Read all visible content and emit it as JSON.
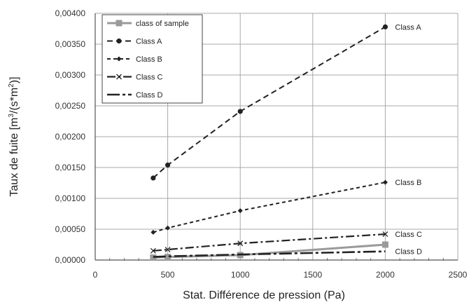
{
  "chart_data": {
    "type": "line",
    "xlabel": "Stat. Différence de pression (Pa)",
    "ylabel_main": "Taux de fuite [m",
    "ylabel_sup1": "3",
    "ylabel_mid": "/(s*m",
    "ylabel_sup2": "2",
    "ylabel_end": ")]",
    "xlim": [
      0,
      2500
    ],
    "ylim": [
      0,
      0.004
    ],
    "x_ticks": [
      0,
      500,
      1000,
      1500,
      2000,
      2500
    ],
    "x_tick_labels": [
      "0",
      "500",
      "1000",
      "1500",
      "2000",
      "2500"
    ],
    "y_ticks": [
      0,
      0.0005,
      0.001,
      0.0015,
      0.002,
      0.0025,
      0.003,
      0.0035,
      0.004
    ],
    "y_tick_labels": [
      "0,00000",
      "0,00050",
      "0,00100",
      "0,00150",
      "0,00200",
      "0,00250",
      "0,00300",
      "0,00350",
      "0,00400"
    ],
    "grid": "both",
    "legend_position": "top-left",
    "series": [
      {
        "name": "class of sample",
        "color": "#9a9a9a",
        "dash": "solid",
        "marker": "square",
        "x": [
          400,
          500,
          1000,
          2000
        ],
        "y": [
          4e-05,
          5e-05,
          8e-05,
          0.00025
        ]
      },
      {
        "name": "Class A",
        "color": "#222222",
        "dash": "dash",
        "marker": "circle",
        "end_label": "Class A",
        "x": [
          400,
          500,
          1000,
          2000
        ],
        "y": [
          0.00133,
          0.00154,
          0.00241,
          0.00378
        ]
      },
      {
        "name": "Class B",
        "color": "#222222",
        "dash": "shortdash",
        "marker": "diamond",
        "end_label": "Class B",
        "x": [
          400,
          500,
          1000,
          2000
        ],
        "y": [
          0.00045,
          0.00052,
          0.0008,
          0.00126
        ]
      },
      {
        "name": "Class C",
        "color": "#222222",
        "dash": "dashdot",
        "marker": "x",
        "end_label": "Class C",
        "x": [
          400,
          500,
          1000,
          2000
        ],
        "y": [
          0.00015,
          0.00017,
          0.00027,
          0.00042
        ]
      },
      {
        "name": "Class D",
        "color": "#222222",
        "dash": "longdashdot",
        "marker": "none",
        "end_label": "Class D",
        "x": [
          400,
          500,
          1000,
          2000
        ],
        "y": [
          5e-05,
          6e-05,
          9e-05,
          0.00014
        ]
      }
    ]
  }
}
